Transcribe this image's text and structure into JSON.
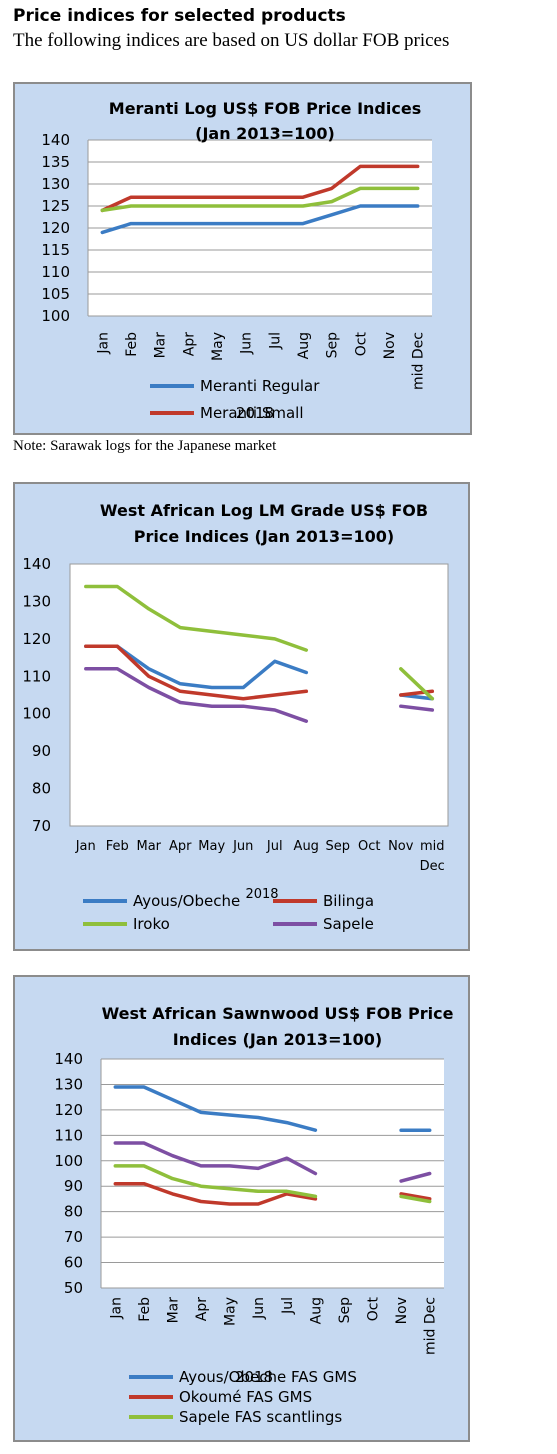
{
  "header": {
    "heading": "Price indices for selected products",
    "intro": "The following indices are based on US dollar FOB prices",
    "note": "Note: Sarawak logs for the Japanese market"
  },
  "chart_data": [
    {
      "type": "line",
      "title": "Meranti Log US$ FOB Price Indices",
      "subtitle": "(Jan 2013=100)",
      "xlabel": "2018",
      "categories": [
        "Jan",
        "Feb",
        "Mar",
        "Apr",
        "May",
        "Jun",
        "Jul",
        "Aug",
        "Sep",
        "Oct",
        "Nov",
        "mid Dec"
      ],
      "ylim": [
        100,
        140
      ],
      "ystep": 5,
      "grid": true,
      "legend": "bottom",
      "x_tick_orientation": "vertical",
      "series": [
        {
          "name": "Meranti Regular",
          "color": "#3b7cc4",
          "values": [
            119,
            121,
            121,
            121,
            121,
            121,
            121,
            121,
            123,
            125,
            125,
            125
          ]
        },
        {
          "name": "Meranti Small",
          "color": "#c0392b",
          "values": [
            124,
            127,
            127,
            127,
            127,
            127,
            127,
            127,
            129,
            134,
            134,
            134
          ]
        },
        {
          "name": "",
          "color": "#8fbf3b",
          "values": [
            124,
            125,
            125,
            125,
            125,
            125,
            125,
            125,
            126,
            129,
            129,
            129
          ]
        }
      ]
    },
    {
      "type": "line",
      "title": "West African Log LM Grade US$ FOB",
      "subtitle": "Price Indices (Jan 2013=100)",
      "xlabel": "2018",
      "categories": [
        "Jan",
        "Feb",
        "Mar",
        "Apr",
        "May",
        "Jun",
        "Jul",
        "Aug",
        "Sep",
        "Oct",
        "Nov",
        "mid Dec"
      ],
      "ylim": [
        70,
        140
      ],
      "ystep": 10,
      "grid": false,
      "legend": "bottom",
      "x_tick_orientation": "horizontal",
      "series": [
        {
          "name": "Ayous/Obeche",
          "color": "#3b7cc4",
          "values": [
            118,
            118,
            112,
            108,
            107,
            107,
            114,
            111,
            null,
            null,
            105,
            104
          ]
        },
        {
          "name": "Bilinga",
          "color": "#c0392b",
          "values": [
            118,
            118,
            110,
            106,
            105,
            104,
            105,
            106,
            null,
            null,
            105,
            106
          ]
        },
        {
          "name": "Iroko",
          "color": "#8fbf3b",
          "values": [
            134,
            134,
            128,
            123,
            122,
            121,
            120,
            117,
            null,
            null,
            112,
            104
          ]
        },
        {
          "name": "Sapele",
          "color": "#7d4fa3",
          "values": [
            112,
            112,
            107,
            103,
            102,
            102,
            101,
            98,
            null,
            null,
            102,
            101
          ]
        }
      ]
    },
    {
      "type": "line",
      "title": "West African Sawnwood US$ FOB Price",
      "subtitle": "Indices (Jan 2013=100)",
      "xlabel": "2018",
      "categories": [
        "Jan",
        "Feb",
        "Mar",
        "Apr",
        "May",
        "Jun",
        "Jul",
        "Aug",
        "Sep",
        "Oct",
        "Nov",
        "mid Dec"
      ],
      "ylim": [
        50,
        140
      ],
      "ystep": 10,
      "grid": true,
      "legend": "bottom",
      "x_tick_orientation": "vertical",
      "series": [
        {
          "name": "Ayous/Obeche  FAS GMS",
          "color": "#3b7cc4",
          "values": [
            129,
            129,
            124,
            119,
            118,
            117,
            115,
            112,
            null,
            null,
            112,
            112
          ]
        },
        {
          "name": "Okoumé  FAS GMS",
          "color": "#c0392b",
          "values": [
            91,
            91,
            87,
            84,
            83,
            83,
            87,
            85,
            null,
            null,
            87,
            85
          ]
        },
        {
          "name": "Sapele FAS scantlings",
          "color": "#8fbf3b",
          "values": [
            98,
            98,
            93,
            90,
            89,
            88,
            88,
            86,
            null,
            null,
            86,
            84
          ]
        },
        {
          "name": "",
          "color": "#7d4fa3",
          "values": [
            107,
            107,
            102,
            98,
            98,
            97,
            101,
            95,
            null,
            null,
            92,
            95
          ]
        }
      ]
    }
  ]
}
